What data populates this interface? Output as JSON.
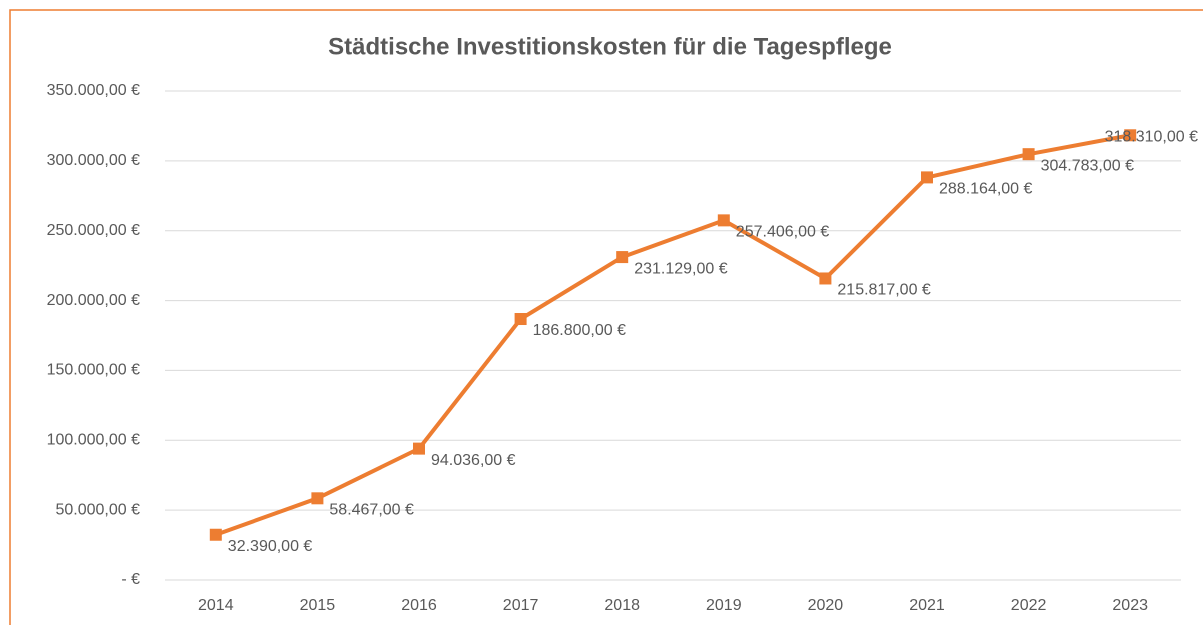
{
  "chart_data": {
    "type": "line",
    "title": "Städtische Investitionskosten für die Tagespflege",
    "categories": [
      "2014",
      "2015",
      "2016",
      "2017",
      "2018",
      "2019",
      "2020",
      "2021",
      "2022",
      "2023"
    ],
    "series": [
      {
        "name": "Investitionskosten",
        "color": "#ed7d31",
        "values": [
          32390,
          58467,
          94036,
          186800,
          231129,
          257406,
          215817,
          288164,
          304783,
          318310
        ],
        "value_labels": [
          "32.390,00 €",
          "58.467,00 €",
          "94.036,00 €",
          "186.800,00 €",
          "231.129,00 €",
          "257.406,00 €",
          "215.817,00 €",
          "288.164,00 €",
          "304.783,00 €",
          "318.310,00 €"
        ]
      }
    ],
    "ylim": [
      0,
      350000
    ],
    "yticks": [
      {
        "value": 0,
        "label": "-   €"
      },
      {
        "value": 50000,
        "label": "50.000,00 €"
      },
      {
        "value": 100000,
        "label": "100.000,00 €"
      },
      {
        "value": 150000,
        "label": "150.000,00 €"
      },
      {
        "value": 200000,
        "label": "200.000,00 €"
      },
      {
        "value": 250000,
        "label": "250.000,00 €"
      },
      {
        "value": 300000,
        "label": "300.000,00 €"
      },
      {
        "value": 350000,
        "label": "350.000,00 €"
      }
    ],
    "grid": true
  }
}
